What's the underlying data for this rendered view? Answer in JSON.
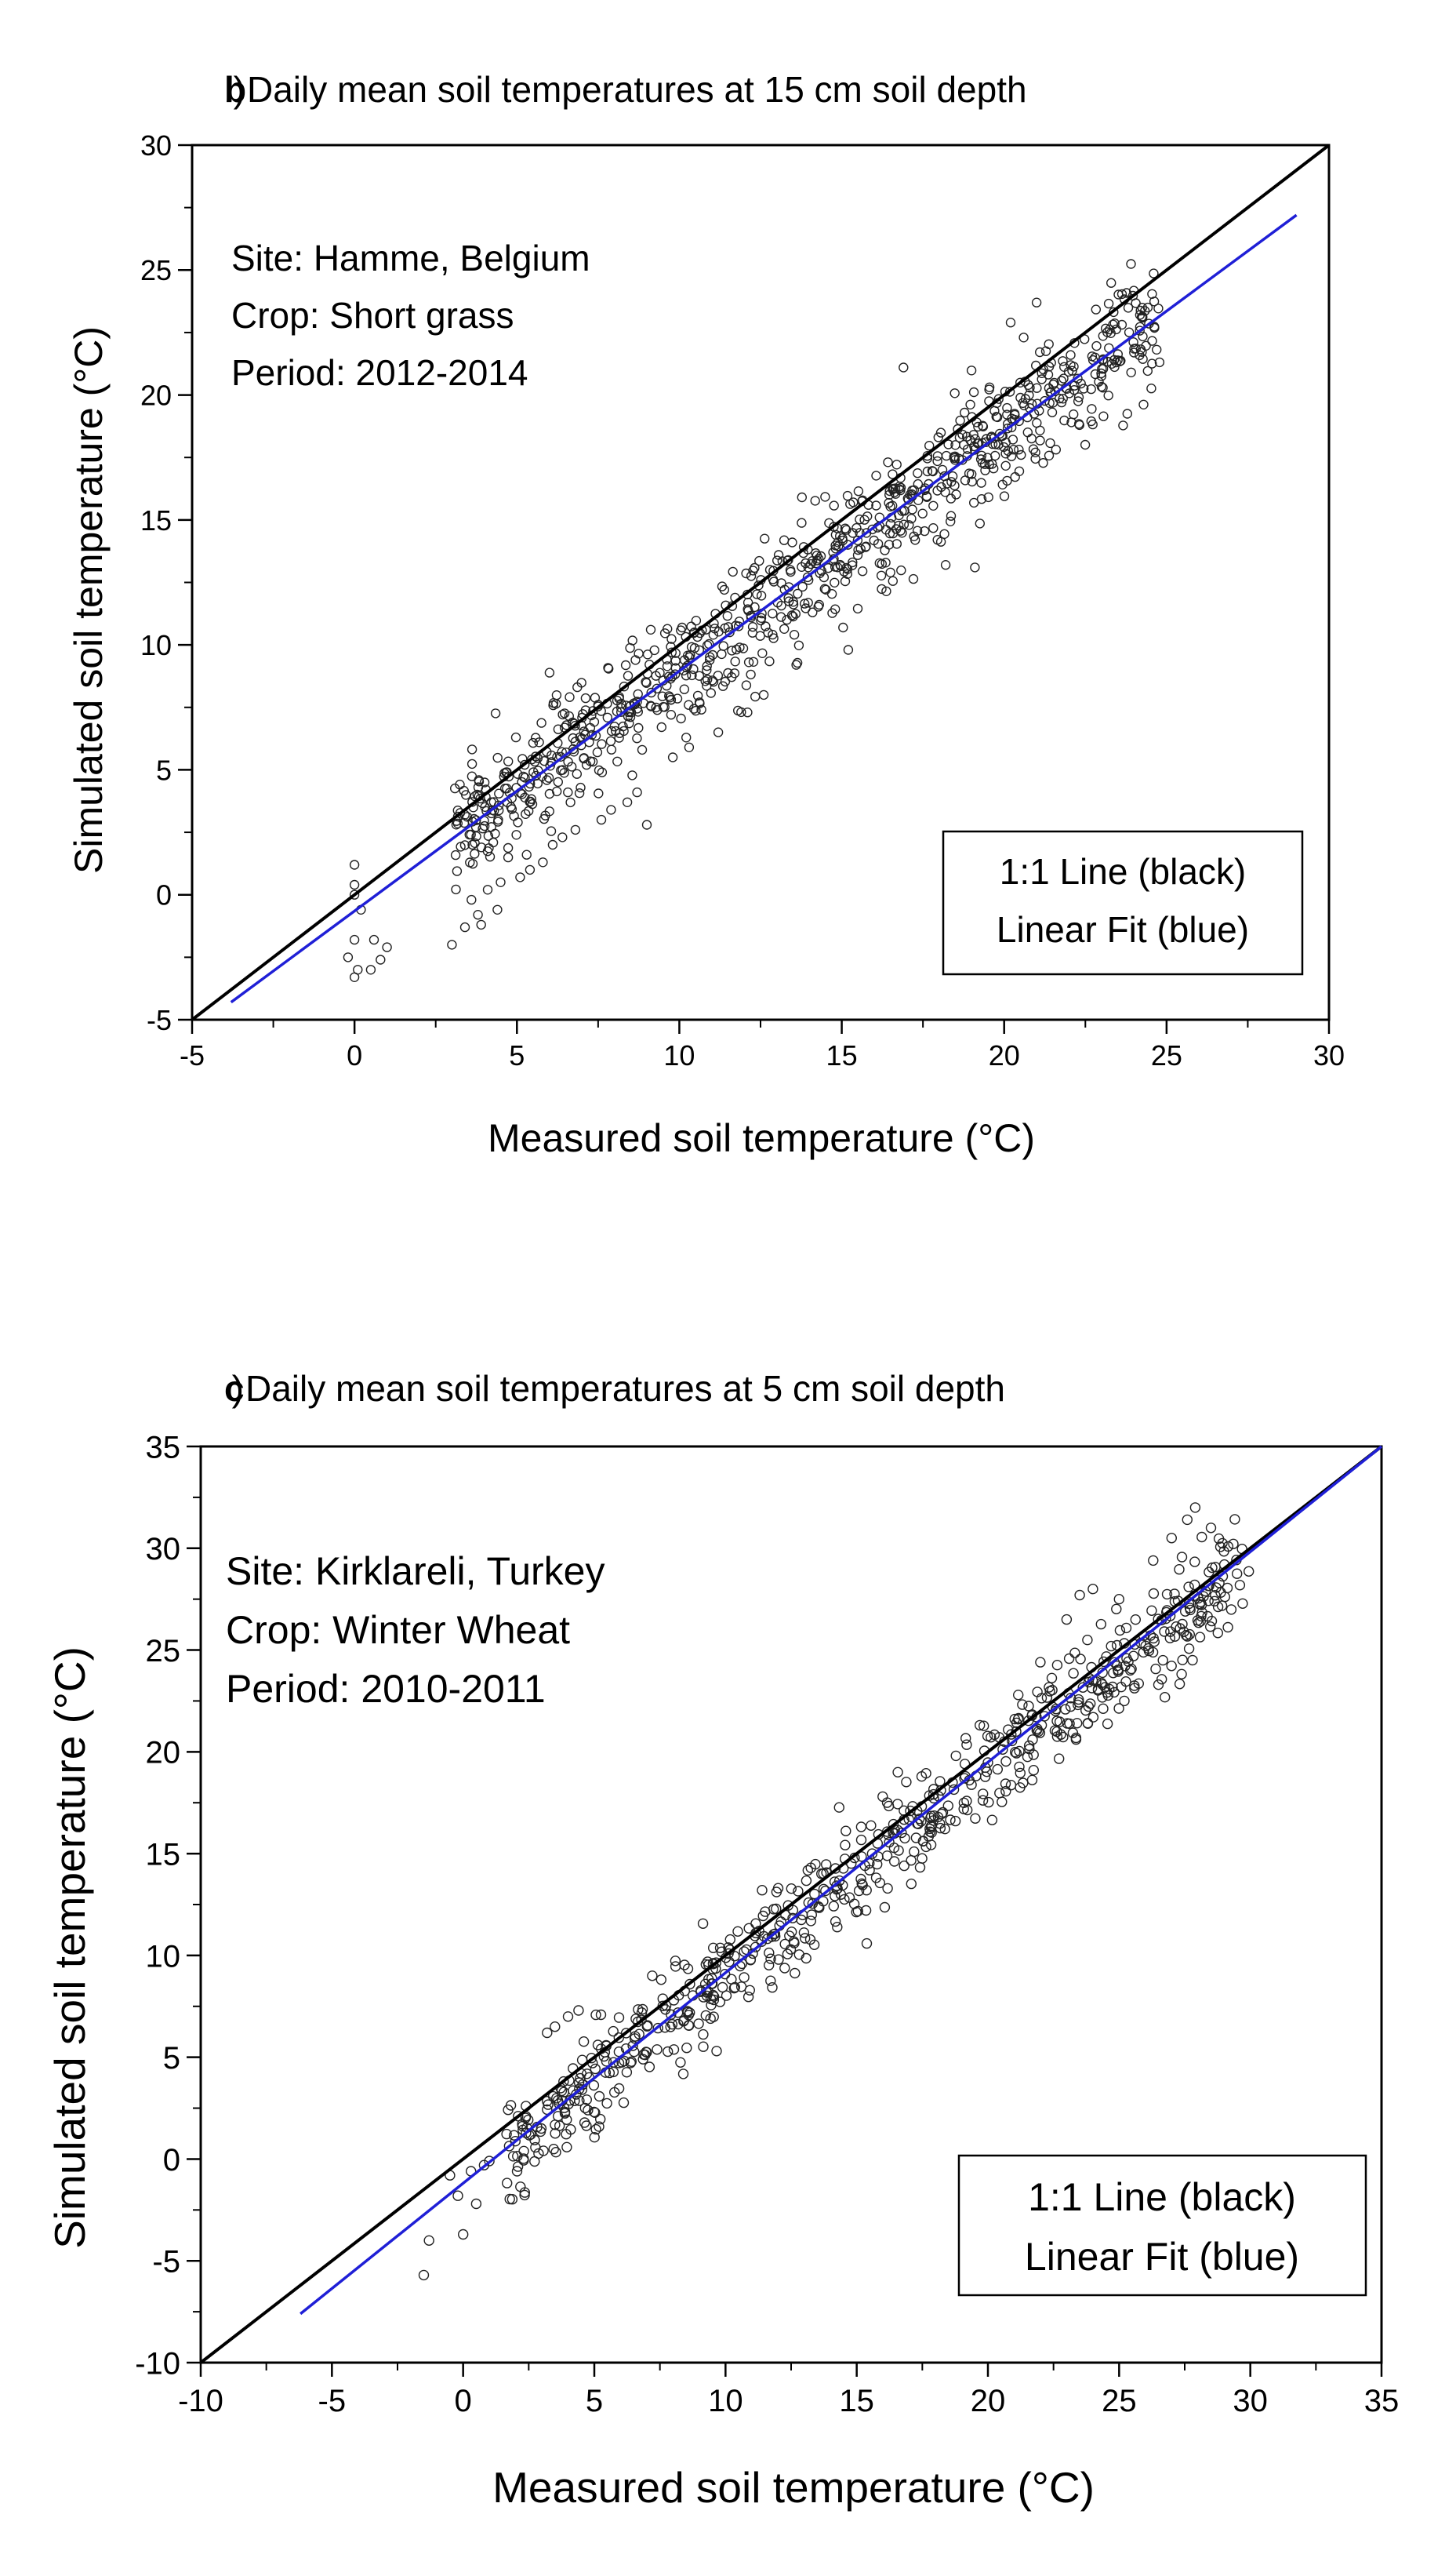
{
  "chart_data": [
    {
      "type": "scatter",
      "panel": "b",
      "title": "Daily mean soil temperatures at 15 cm soil depth",
      "xlabel": "Measured soil temperature (°C)",
      "ylabel": "Simulated soil temperature (°C)",
      "xlim": [
        -5,
        30
      ],
      "ylim": [
        -5,
        30
      ],
      "xticks": [
        -5,
        0,
        5,
        10,
        15,
        20,
        25,
        30
      ],
      "yticks": [
        -5,
        0,
        5,
        10,
        15,
        20,
        25,
        30
      ],
      "annotations": [
        "Site: Hamme, Belgium",
        "Crop: Short grass",
        "Period: 2012-2014"
      ],
      "legend": {
        "position": "bottom-right",
        "entries": [
          "1:1 Line (black)",
          "Linear Fit (blue)"
        ]
      },
      "series": [
        {
          "name": "1:1 Line (black)",
          "kind": "line",
          "color": "#000000",
          "x": [
            -5,
            30
          ],
          "y": [
            -5,
            30
          ]
        },
        {
          "name": "Linear Fit (blue)",
          "kind": "line",
          "color": "#1f1fd6",
          "x": [
            -3.8,
            29
          ],
          "y": [
            -4.3,
            27.2
          ]
        },
        {
          "name": "Simulated vs measured",
          "kind": "scatter",
          "color": "#222222",
          "cloud": {
            "n": 900,
            "x_range": [
              3,
              24.8
            ],
            "slope": 0.955,
            "intercept": -0.6,
            "spread": 1.25,
            "seed": 17
          },
          "points": [
            [
              -0.2,
              -2.5
            ],
            [
              0.0,
              -3.3
            ],
            [
              0.1,
              -3.0
            ],
            [
              0.5,
              -3.0
            ],
            [
              0.8,
              -2.6
            ],
            [
              1.0,
              -2.1
            ],
            [
              0.6,
              -1.8
            ],
            [
              0.0,
              -1.8
            ],
            [
              0.0,
              0.0
            ],
            [
              0.0,
              0.4
            ],
            [
              0.0,
              1.2
            ],
            [
              0.2,
              -0.6
            ],
            [
              3.0,
              -2.0
            ],
            [
              3.4,
              -1.3
            ],
            [
              3.8,
              -0.8
            ],
            [
              3.9,
              -1.2
            ],
            [
              4.4,
              -0.6
            ],
            [
              4.1,
              0.2
            ],
            [
              3.6,
              -0.2
            ],
            [
              5.1,
              0.7
            ],
            [
              5.4,
              1.0
            ],
            [
              5.8,
              1.3
            ],
            [
              5.3,
              1.6
            ],
            [
              6.1,
              2.0
            ],
            [
              6.4,
              2.3
            ],
            [
              6.8,
              2.6
            ],
            [
              7.6,
              3.0
            ],
            [
              7.9,
              3.4
            ],
            [
              8.4,
              3.7
            ],
            [
              9.0,
              2.8
            ],
            [
              8.7,
              4.1
            ],
            [
              9.8,
              5.5
            ],
            [
              10.3,
              5.9
            ],
            [
              11.2,
              6.5
            ],
            [
              12.1,
              7.3
            ],
            [
              12.6,
              8.0
            ],
            [
              13.6,
              9.2
            ],
            [
              14.1,
              11.3
            ],
            [
              15.2,
              9.8
            ],
            [
              16.5,
              12.9
            ],
            [
              18.2,
              13.2
            ],
            [
              19.1,
              13.1
            ],
            [
              20.2,
              22.9
            ],
            [
              21.0,
              23.7
            ],
            [
              20.6,
              22.3
            ],
            [
              16.9,
              21.1
            ]
          ]
        }
      ]
    },
    {
      "type": "scatter",
      "panel": "c",
      "title": "Daily mean soil temperatures at 5 cm soil depth",
      "xlabel": "Measured soil temperature (°C)",
      "ylabel": "Simulated soil temperature (°C)",
      "xlim": [
        -10,
        35
      ],
      "ylim": [
        -10,
        35
      ],
      "xticks": [
        -10,
        -5,
        0,
        5,
        10,
        15,
        20,
        25,
        30,
        35
      ],
      "yticks": [
        -10,
        -5,
        0,
        5,
        10,
        15,
        20,
        25,
        30,
        35
      ],
      "annotations": [
        "Site: Kirklareli, Turkey",
        "Crop: Winter Wheat",
        "Period: 2010-2011"
      ],
      "legend": {
        "position": "bottom-right",
        "entries": [
          "1:1 Line (black)",
          "Linear Fit (blue)"
        ]
      },
      "series": [
        {
          "name": "1:1 Line (black)",
          "kind": "line",
          "color": "#000000",
          "x": [
            -10,
            35
          ],
          "y": [
            -10,
            35
          ]
        },
        {
          "name": "Linear Fit (blue)",
          "kind": "line",
          "color": "#1f1fd6",
          "x": [
            -6.2,
            35
          ],
          "y": [
            -7.6,
            35
          ]
        },
        {
          "name": "Simulated vs measured",
          "kind": "scatter",
          "color": "#222222",
          "cloud": {
            "n": 700,
            "x_range": [
              1.5,
              30
            ],
            "slope": 1.02,
            "intercept": -1.2,
            "spread": 1.3,
            "seed": 29
          },
          "points": [
            [
              -1.5,
              -5.7
            ],
            [
              -1.3,
              -4.0
            ],
            [
              0.0,
              -3.7
            ],
            [
              -0.2,
              -1.8
            ],
            [
              0.5,
              -2.2
            ],
            [
              0.8,
              -0.3
            ],
            [
              0.3,
              -0.6
            ],
            [
              -0.5,
              -0.8
            ],
            [
              1.0,
              -0.1
            ],
            [
              3.2,
              6.2
            ],
            [
              3.5,
              6.5
            ],
            [
              4.0,
              7.0
            ],
            [
              4.4,
              7.3
            ],
            [
              22.0,
              24.4
            ],
            [
              23.0,
              26.5
            ],
            [
              23.5,
              27.7
            ],
            [
              24.0,
              28.0
            ],
            [
              25.0,
              27.5
            ],
            [
              26.3,
              29.4
            ],
            [
              27.0,
              30.5
            ],
            [
              27.6,
              31.4
            ],
            [
              27.9,
              32.0
            ],
            [
              28.5,
              31.0
            ],
            [
              27.8,
              24.5
            ],
            [
              26.5,
              23.3
            ],
            [
              25.2,
              22.5
            ]
          ]
        }
      ]
    }
  ]
}
